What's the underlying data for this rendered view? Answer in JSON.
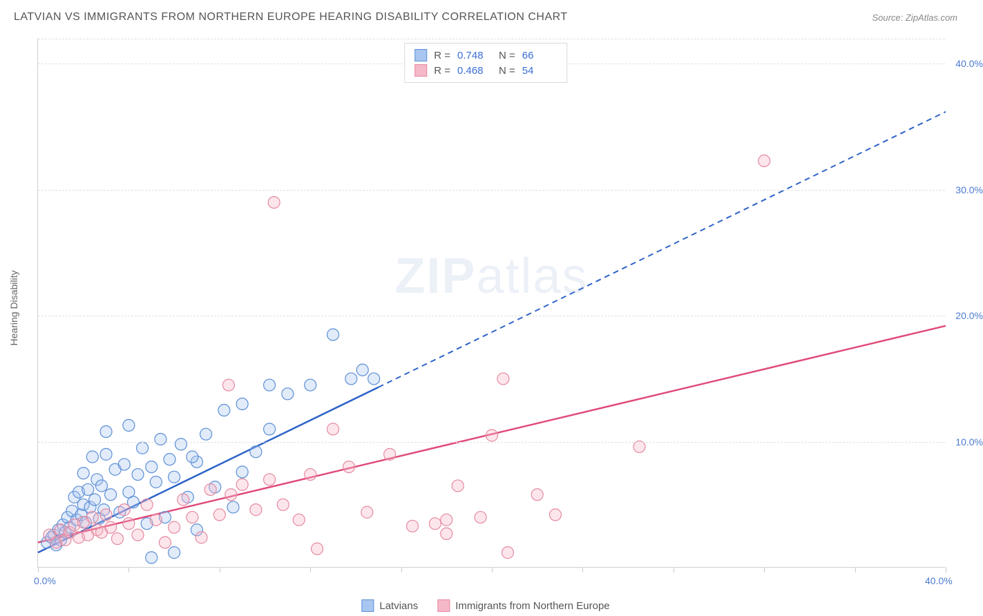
{
  "title": "LATVIAN VS IMMIGRANTS FROM NORTHERN EUROPE HEARING DISABILITY CORRELATION CHART",
  "source": "Source: ZipAtlas.com",
  "watermark": "ZIPatlas",
  "y_axis_title": "Hearing Disability",
  "chart": {
    "type": "scatter",
    "xlim": [
      0,
      40
    ],
    "ylim": [
      0,
      42
    ],
    "x_ticks": [
      0,
      4,
      8,
      12,
      16,
      20,
      24,
      28,
      32,
      36,
      40
    ],
    "y_grid": [
      10,
      20,
      30,
      40,
      42
    ],
    "y_labels": [
      {
        "v": 10,
        "t": "10.0%"
      },
      {
        "v": 20,
        "t": "20.0%"
      },
      {
        "v": 30,
        "t": "30.0%"
      },
      {
        "v": 40,
        "t": "40.0%"
      }
    ],
    "x_labels": [
      {
        "v": 0,
        "t": "0.0%"
      },
      {
        "v": 40,
        "t": "40.0%"
      }
    ],
    "background_color": "#ffffff",
    "grid_color": "#e0e0e0",
    "axis_color": "#d0d0d0",
    "label_color": "#4a7bd0",
    "marker_radius": 8.5,
    "marker_stroke_width": 1.2,
    "marker_fill_opacity": 0.35,
    "reg_line_width": 2.5
  },
  "series": [
    {
      "name": "Latvians",
      "color_fill": "#a8c6f0",
      "color_stroke": "#5c8fd6",
      "reg_color": "#2e63c9",
      "reg_solid_x_end": 15,
      "R": "0.748",
      "N": "66",
      "regression": {
        "x0": 0,
        "y0": 1.2,
        "x1": 40,
        "y1": 36.2
      },
      "points": [
        [
          0.4,
          2.0
        ],
        [
          0.6,
          2.4
        ],
        [
          0.7,
          2.6
        ],
        [
          0.8,
          1.8
        ],
        [
          0.9,
          3.0
        ],
        [
          1.0,
          2.2
        ],
        [
          1.1,
          3.4
        ],
        [
          1.2,
          2.8
        ],
        [
          1.3,
          4.0
        ],
        [
          1.4,
          3.2
        ],
        [
          1.5,
          4.5
        ],
        [
          1.6,
          5.6
        ],
        [
          1.7,
          3.8
        ],
        [
          1.8,
          6.0
        ],
        [
          1.9,
          4.2
        ],
        [
          2.0,
          5.0
        ],
        [
          2.0,
          7.5
        ],
        [
          2.1,
          3.6
        ],
        [
          2.2,
          6.2
        ],
        [
          2.3,
          4.8
        ],
        [
          2.4,
          8.8
        ],
        [
          2.5,
          5.4
        ],
        [
          2.6,
          7.0
        ],
        [
          2.7,
          3.9
        ],
        [
          2.8,
          6.5
        ],
        [
          2.9,
          4.6
        ],
        [
          3.0,
          9.0
        ],
        [
          3.0,
          10.8
        ],
        [
          3.2,
          5.8
        ],
        [
          3.4,
          7.8
        ],
        [
          3.6,
          4.4
        ],
        [
          3.8,
          8.2
        ],
        [
          4.0,
          6.0
        ],
        [
          4.0,
          11.3
        ],
        [
          4.2,
          5.2
        ],
        [
          4.4,
          7.4
        ],
        [
          4.6,
          9.5
        ],
        [
          4.8,
          3.5
        ],
        [
          5.0,
          8.0
        ],
        [
          5.0,
          0.8
        ],
        [
          5.2,
          6.8
        ],
        [
          5.4,
          10.2
        ],
        [
          5.6,
          4.0
        ],
        [
          5.8,
          8.6
        ],
        [
          6.0,
          7.2
        ],
        [
          6.0,
          1.2
        ],
        [
          6.3,
          9.8
        ],
        [
          6.6,
          5.6
        ],
        [
          7.0,
          8.4
        ],
        [
          7.0,
          3.0
        ],
        [
          7.4,
          10.6
        ],
        [
          7.8,
          6.4
        ],
        [
          8.2,
          12.5
        ],
        [
          8.6,
          4.8
        ],
        [
          9.0,
          13.0
        ],
        [
          9.0,
          7.6
        ],
        [
          9.6,
          9.2
        ],
        [
          10.2,
          14.5
        ],
        [
          10.2,
          11.0
        ],
        [
          11.0,
          13.8
        ],
        [
          12.0,
          14.5
        ],
        [
          13.0,
          18.5
        ],
        [
          13.8,
          15.0
        ],
        [
          14.3,
          15.7
        ],
        [
          14.8,
          15.0
        ],
        [
          6.8,
          8.8
        ]
      ]
    },
    {
      "name": "Immigrants from Northern Europe",
      "color_fill": "#f5b8c8",
      "color_stroke": "#e5899f",
      "reg_color": "#e14b79",
      "reg_solid_x_end": 40,
      "R": "0.468",
      "N": "54",
      "regression": {
        "x0": 0,
        "y0": 2.0,
        "x1": 40,
        "y1": 19.2
      },
      "points": [
        [
          0.5,
          2.6
        ],
        [
          0.8,
          2.0
        ],
        [
          1.0,
          3.0
        ],
        [
          1.2,
          2.2
        ],
        [
          1.4,
          2.8
        ],
        [
          1.6,
          3.4
        ],
        [
          1.8,
          2.4
        ],
        [
          2.0,
          3.6
        ],
        [
          2.2,
          2.6
        ],
        [
          2.4,
          4.0
        ],
        [
          2.6,
          3.0
        ],
        [
          2.8,
          2.8
        ],
        [
          3.0,
          4.2
        ],
        [
          3.2,
          3.2
        ],
        [
          3.5,
          2.3
        ],
        [
          3.8,
          4.6
        ],
        [
          4.0,
          3.5
        ],
        [
          4.4,
          2.6
        ],
        [
          4.8,
          5.0
        ],
        [
          5.2,
          3.8
        ],
        [
          5.6,
          2.0
        ],
        [
          6.0,
          3.2
        ],
        [
          6.4,
          5.4
        ],
        [
          6.8,
          4.0
        ],
        [
          7.2,
          2.4
        ],
        [
          7.6,
          6.2
        ],
        [
          8.0,
          4.2
        ],
        [
          8.5,
          5.8
        ],
        [
          8.4,
          14.5
        ],
        [
          9.0,
          6.6
        ],
        [
          9.6,
          4.6
        ],
        [
          10.2,
          7.0
        ],
        [
          10.4,
          29.0
        ],
        [
          10.8,
          5.0
        ],
        [
          11.5,
          3.8
        ],
        [
          12.0,
          7.4
        ],
        [
          12.3,
          1.5
        ],
        [
          13.0,
          11.0
        ],
        [
          13.7,
          8.0
        ],
        [
          14.5,
          4.4
        ],
        [
          15.5,
          9.0
        ],
        [
          16.5,
          3.3
        ],
        [
          17.5,
          3.5
        ],
        [
          18.0,
          2.7
        ],
        [
          18.5,
          6.5
        ],
        [
          19.5,
          4.0
        ],
        [
          20.0,
          10.5
        ],
        [
          20.5,
          15.0
        ],
        [
          20.7,
          1.2
        ],
        [
          22.0,
          5.8
        ],
        [
          22.8,
          4.2
        ],
        [
          26.5,
          9.6
        ],
        [
          32.0,
          32.3
        ],
        [
          18.0,
          3.8
        ]
      ]
    }
  ],
  "stats_legend": {
    "rows": [
      {
        "swatch_fill": "#a8c6f0",
        "swatch_stroke": "#5c8fd6",
        "R": "0.748",
        "N": "66"
      },
      {
        "swatch_fill": "#f5b8c8",
        "swatch_stroke": "#e5899f",
        "R": "0.468",
        "N": "54"
      }
    ],
    "label_R": "R  =",
    "label_N": "N  ="
  },
  "series_legend": {
    "items": [
      {
        "swatch_fill": "#a8c6f0",
        "swatch_stroke": "#5c8fd6",
        "label": "Latvians"
      },
      {
        "swatch_fill": "#f5b8c8",
        "swatch_stroke": "#e5899f",
        "label": "Immigrants from Northern Europe"
      }
    ]
  }
}
